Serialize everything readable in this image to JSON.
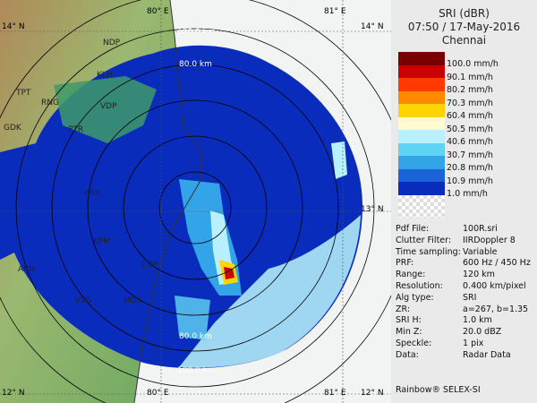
{
  "legend": {
    "title": "SRI (dBR)",
    "datetime": "07:50 / 17-May-2016",
    "site": "Chennai",
    "levels": [
      {
        "label": "100.0 mm/h",
        "color": "#7a0000"
      },
      {
        "label": "90.1 mm/h",
        "color": "#c80000"
      },
      {
        "label": "80.2 mm/h",
        "color": "#ff3a00"
      },
      {
        "label": "70.3 mm/h",
        "color": "#ff8a00"
      },
      {
        "label": "60.4 mm/h",
        "color": "#ffd400"
      },
      {
        "label": "50.5 mm/h",
        "color": "#fffbd0"
      },
      {
        "label": "40.6 mm/h",
        "color": "#b8f0ff"
      },
      {
        "label": "30.7 mm/h",
        "color": "#60d4f4"
      },
      {
        "label": "20.8 mm/h",
        "color": "#34a4e8"
      },
      {
        "label": "10.9 mm/h",
        "color": "#1a64d8"
      },
      {
        "label": "1.0 mm/h",
        "color": "#0a2cbc"
      }
    ]
  },
  "info": [
    {
      "key": "Pdf File:",
      "value": "100R.sri"
    },
    {
      "key": "Clutter Filter:",
      "value": "IIRDoppler 8"
    },
    {
      "key": "Time sampling:",
      "value": "Variable"
    },
    {
      "key": "PRF:",
      "value": "600 Hz / 450 Hz"
    },
    {
      "key": "Range:",
      "value": "120 km"
    },
    {
      "key": "Resolution:",
      "value": "0.400 km/pixel"
    },
    {
      "key": "Alg type:",
      "value": "SRI"
    },
    {
      "key": "ZR:",
      "value": "a=267, b=1.35"
    },
    {
      "key": "SRI H:",
      "value": "1.0 km"
    },
    {
      "key": "Min Z:",
      "value": "20.0 dBZ"
    },
    {
      "key": "Speckle:",
      "value": "1 pix"
    },
    {
      "key": "Data:",
      "value": "Radar Data"
    }
  ],
  "footer": "Rainbow® SELEX-SI",
  "map": {
    "grid_labels": [
      "14° N",
      "80° E",
      "81° E",
      "14° N",
      "13° N",
      "12° N",
      "80° E",
      "81° E",
      "12° N"
    ],
    "range_labels": [
      "100.0 km",
      "80.0 km",
      "80.0 km",
      "100.0 km"
    ],
    "place_labels": [
      "NDP",
      "KLH",
      "TPT",
      "RNG",
      "VDP",
      "GDK",
      "PTR",
      "ARK",
      "KPM",
      "CGP",
      "ARN",
      "VVS",
      "MDK"
    ]
  }
}
